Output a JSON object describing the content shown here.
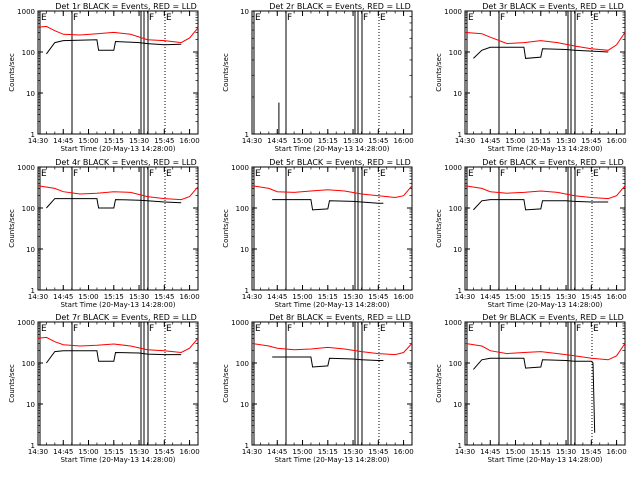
{
  "chart_data": [
    {
      "type": "line",
      "title": "Det 1r BLACK = Events, RED = LLD",
      "xlabel": "Start Time (20-May-13 14:28:00)",
      "ylabel": "Counts/sec",
      "xlim": [
        "14:30",
        "16:05"
      ],
      "ylim": [
        1,
        1000
      ],
      "yscale": "log",
      "x_ticks": [
        "14:30",
        "14:45",
        "15:00",
        "15:15",
        "15:30",
        "15:45",
        "16:00"
      ],
      "y_ticks": [
        "1",
        "10",
        "100",
        "1000"
      ],
      "flags": [
        "E",
        "F",
        "F",
        "E"
      ],
      "series": [
        {
          "color": "#ff0000",
          "x": [
            "14:30",
            "14:35",
            "14:40",
            "14:45",
            "14:55",
            "15:05",
            "15:15",
            "15:25",
            "15:35",
            "15:45",
            "15:55",
            "16:00",
            "16:05"
          ],
          "y": [
            400,
            420,
            330,
            270,
            260,
            280,
            300,
            270,
            200,
            190,
            170,
            220,
            390
          ]
        },
        {
          "color": "#000000",
          "x": [
            "14:35",
            "14:40",
            "14:45",
            "15:05",
            "15:06",
            "15:15",
            "15:16",
            "15:30",
            "15:35",
            "15:45",
            "15:55"
          ],
          "y": [
            90,
            170,
            190,
            200,
            110,
            110,
            180,
            170,
            160,
            150,
            155
          ]
        }
      ]
    },
    {
      "type": "line",
      "title": "Det 2r BLACK = Events, RED = LLD",
      "xlabel": "Start Time (20-May-13 14:28:00)",
      "ylabel": "Counts/sec",
      "xlim": [
        "14:30",
        "16:05"
      ],
      "ylim": [
        1,
        10
      ],
      "yscale": "log",
      "x_ticks": [
        "14:30",
        "14:45",
        "15:00",
        "15:15",
        "15:30",
        "15:45",
        "16:00"
      ],
      "y_ticks": [
        "1",
        "10"
      ],
      "flags": [
        "E",
        "F",
        "F",
        "E"
      ],
      "series": [
        {
          "color": "#000000",
          "x": [
            "14:46",
            "14:46"
          ],
          "y": [
            1,
            1.8
          ]
        }
      ]
    },
    {
      "type": "line",
      "title": "Det 3r BLACK = Events, RED = LLD",
      "xlabel": "Start Time (20-May-13 14:28:00)",
      "ylabel": "Counts/sec",
      "xlim": [
        "14:30",
        "16:05"
      ],
      "ylim": [
        1,
        1000
      ],
      "yscale": "log",
      "x_ticks": [
        "14:30",
        "14:45",
        "15:00",
        "15:15",
        "15:30",
        "15:45",
        "16:00"
      ],
      "y_ticks": [
        "1",
        "10",
        "100",
        "1000"
      ],
      "flags": [
        "E",
        "F",
        "F",
        "E"
      ],
      "series": [
        {
          "color": "#ff0000",
          "x": [
            "14:30",
            "14:40",
            "14:45",
            "14:55",
            "15:05",
            "15:15",
            "15:25",
            "15:35",
            "15:45",
            "15:55",
            "16:00",
            "16:05"
          ],
          "y": [
            300,
            280,
            230,
            160,
            170,
            190,
            170,
            140,
            120,
            110,
            150,
            300
          ]
        },
        {
          "color": "#000000",
          "x": [
            "14:35",
            "14:40",
            "14:45",
            "15:05",
            "15:06",
            "15:15",
            "15:16",
            "15:30",
            "15:35",
            "15:45",
            "15:55"
          ],
          "y": [
            70,
            110,
            130,
            130,
            70,
            75,
            120,
            115,
            110,
            105,
            100
          ]
        }
      ]
    },
    {
      "type": "line",
      "title": "Det 4r BLACK = Events, RED = LLD",
      "xlabel": "Start Time (20-May-13 14:28:00)",
      "ylabel": "Counts/sec",
      "xlim": [
        "14:30",
        "16:05"
      ],
      "ylim": [
        1,
        1000
      ],
      "yscale": "log",
      "x_ticks": [
        "14:30",
        "14:45",
        "15:00",
        "15:15",
        "15:30",
        "15:45",
        "16:00"
      ],
      "y_ticks": [
        "1",
        "10",
        "100",
        "1000"
      ],
      "flags": [
        "E",
        "F",
        "F",
        "E"
      ],
      "series": [
        {
          "color": "#ff0000",
          "x": [
            "14:30",
            "14:40",
            "14:45",
            "14:55",
            "15:05",
            "15:15",
            "15:25",
            "15:35",
            "15:45",
            "15:55",
            "16:00",
            "16:05"
          ],
          "y": [
            350,
            300,
            250,
            220,
            230,
            250,
            240,
            190,
            170,
            160,
            190,
            330
          ]
        },
        {
          "color": "#000000",
          "x": [
            "14:35",
            "14:40",
            "14:45",
            "15:05",
            "15:06",
            "15:15",
            "15:16",
            "15:30",
            "15:35",
            "15:45",
            "15:55"
          ],
          "y": [
            100,
            170,
            170,
            170,
            100,
            100,
            160,
            155,
            150,
            140,
            135
          ]
        }
      ]
    },
    {
      "type": "line",
      "title": "Det 5r BLACK = Events, RED = LLD",
      "xlabel": "Start Time (20-May-13 14:28:00)",
      "ylabel": "Counts/sec",
      "xlim": [
        "14:30",
        "16:05"
      ],
      "ylim": [
        1,
        1000
      ],
      "yscale": "log",
      "x_ticks": [
        "14:30",
        "14:45",
        "15:00",
        "15:15",
        "15:30",
        "15:45",
        "16:00"
      ],
      "y_ticks": [
        "1",
        "10",
        "100",
        "1000"
      ],
      "flags": [
        "E",
        "F",
        "F",
        "E"
      ],
      "series": [
        {
          "color": "#ff0000",
          "x": [
            "14:30",
            "14:40",
            "14:45",
            "14:55",
            "15:05",
            "15:15",
            "15:25",
            "15:35",
            "15:45",
            "15:55",
            "16:00",
            "16:05"
          ],
          "y": [
            350,
            300,
            250,
            240,
            260,
            280,
            260,
            220,
            200,
            180,
            200,
            350
          ]
        },
        {
          "color": "#000000",
          "x": [
            "14:42",
            "14:45",
            "15:05",
            "15:06",
            "15:15",
            "15:16",
            "15:30",
            "15:35",
            "15:45",
            "15:48"
          ],
          "y": [
            160,
            160,
            160,
            90,
            95,
            150,
            145,
            140,
            130,
            130
          ]
        }
      ]
    },
    {
      "type": "line",
      "title": "Det 6r BLACK = Events, RED = LLD",
      "xlabel": "Start Time (20-May-13 14:28:00)",
      "ylabel": "Counts/sec",
      "xlim": [
        "14:30",
        "16:05"
      ],
      "ylim": [
        1,
        1000
      ],
      "yscale": "log",
      "x_ticks": [
        "14:30",
        "14:45",
        "15:00",
        "15:15",
        "15:30",
        "15:45",
        "16:00"
      ],
      "y_ticks": [
        "1",
        "10",
        "100",
        "1000"
      ],
      "flags": [
        "E",
        "F",
        "F",
        "E"
      ],
      "series": [
        {
          "color": "#ff0000",
          "x": [
            "14:30",
            "14:40",
            "14:45",
            "14:55",
            "15:05",
            "15:15",
            "15:25",
            "15:35",
            "15:45",
            "15:55",
            "16:00",
            "16:05"
          ],
          "y": [
            350,
            300,
            250,
            230,
            240,
            260,
            240,
            200,
            180,
            170,
            200,
            350
          ]
        },
        {
          "color": "#000000",
          "x": [
            "14:35",
            "14:40",
            "14:45",
            "15:05",
            "15:06",
            "15:15",
            "15:16",
            "15:30",
            "15:35",
            "15:45",
            "15:55"
          ],
          "y": [
            90,
            150,
            160,
            160,
            90,
            95,
            150,
            150,
            145,
            140,
            140
          ]
        }
      ]
    },
    {
      "type": "line",
      "title": "Det 7r BLACK = Events, RED = LLD",
      "xlabel": "Start Time (20-May-13 14:28:00)",
      "ylabel": "Counts/sec",
      "xlim": [
        "14:30",
        "16:05"
      ],
      "ylim": [
        1,
        1000
      ],
      "yscale": "log",
      "x_ticks": [
        "14:30",
        "14:45",
        "15:00",
        "15:15",
        "15:30",
        "15:45",
        "16:00"
      ],
      "y_ticks": [
        "1",
        "10",
        "100",
        "1000"
      ],
      "flags": [
        "E",
        "F",
        "F",
        "E"
      ],
      "series": [
        {
          "color": "#ff0000",
          "x": [
            "14:30",
            "14:35",
            "14:40",
            "14:45",
            "14:55",
            "15:05",
            "15:15",
            "15:25",
            "15:35",
            "15:45",
            "15:55",
            "16:00",
            "16:05"
          ],
          "y": [
            400,
            420,
            330,
            280,
            260,
            270,
            290,
            260,
            210,
            200,
            180,
            230,
            400
          ]
        },
        {
          "color": "#000000",
          "x": [
            "14:35",
            "14:40",
            "14:45",
            "15:05",
            "15:06",
            "15:15",
            "15:16",
            "15:30",
            "15:35",
            "15:45",
            "15:55"
          ],
          "y": [
            100,
            190,
            200,
            200,
            110,
            110,
            180,
            175,
            165,
            160,
            160
          ]
        }
      ]
    },
    {
      "type": "line",
      "title": "Det 8r BLACK = Events, RED = LLD",
      "xlabel": "Start Time (20-May-13 14:28:00)",
      "ylabel": "Counts/sec",
      "xlim": [
        "14:30",
        "16:05"
      ],
      "ylim": [
        1,
        1000
      ],
      "yscale": "log",
      "x_ticks": [
        "14:30",
        "14:45",
        "15:00",
        "15:15",
        "15:30",
        "15:45",
        "16:00"
      ],
      "y_ticks": [
        "1",
        "10",
        "100",
        "1000"
      ],
      "flags": [
        "E",
        "F",
        "F",
        "E"
      ],
      "series": [
        {
          "color": "#ff0000",
          "x": [
            "14:30",
            "14:40",
            "14:45",
            "14:55",
            "15:05",
            "15:15",
            "15:25",
            "15:35",
            "15:45",
            "15:55",
            "16:00",
            "16:05"
          ],
          "y": [
            300,
            260,
            230,
            210,
            220,
            240,
            220,
            190,
            170,
            160,
            180,
            300
          ]
        },
        {
          "color": "#000000",
          "x": [
            "14:42",
            "14:45",
            "15:05",
            "15:06",
            "15:15",
            "15:16",
            "15:30",
            "15:35",
            "15:45",
            "15:48"
          ],
          "y": [
            140,
            140,
            140,
            80,
            85,
            130,
            125,
            120,
            115,
            115
          ]
        }
      ]
    },
    {
      "type": "line",
      "title": "Det 9r BLACK = Events, RED = LLD",
      "xlabel": "Start Time (20-May-13 14:28:00)",
      "ylabel": "Counts/sec",
      "xlim": [
        "14:30",
        "16:05"
      ],
      "ylim": [
        1,
        1000
      ],
      "yscale": "log",
      "x_ticks": [
        "14:30",
        "14:45",
        "15:00",
        "15:15",
        "15:30",
        "15:45",
        "16:00"
      ],
      "y_ticks": [
        "1",
        "10",
        "100",
        "1000"
      ],
      "flags": [
        "E",
        "F",
        "F",
        "E"
      ],
      "series": [
        {
          "color": "#ff0000",
          "x": [
            "14:30",
            "14:40",
            "14:45",
            "14:55",
            "15:05",
            "15:15",
            "15:25",
            "15:35",
            "15:45",
            "15:55",
            "16:00",
            "16:05"
          ],
          "y": [
            300,
            260,
            200,
            170,
            180,
            190,
            170,
            150,
            130,
            120,
            150,
            300
          ]
        },
        {
          "color": "#000000",
          "x": [
            "14:35",
            "14:40",
            "14:45",
            "15:05",
            "15:06",
            "15:15",
            "15:16",
            "15:30",
            "15:35",
            "15:45",
            "15:46",
            "15:47"
          ],
          "y": [
            70,
            120,
            130,
            130,
            75,
            80,
            120,
            115,
            110,
            110,
            100,
            2
          ]
        }
      ]
    }
  ]
}
